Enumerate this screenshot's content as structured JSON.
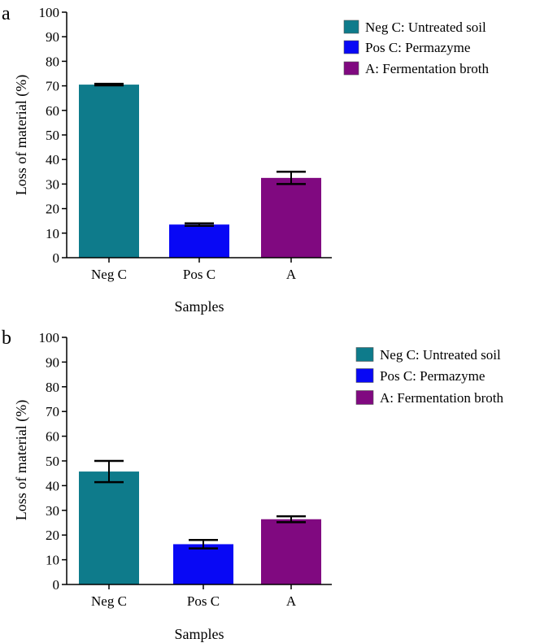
{
  "chart_data": [
    {
      "panel": "a",
      "type": "bar",
      "categories": [
        "Neg C",
        "Pos C",
        "A"
      ],
      "values": [
        70.5,
        13.5,
        32.5
      ],
      "errors": [
        0.3,
        0.5,
        2.5
      ],
      "colors": [
        "#0e7b8b",
        "#0808f5",
        "#800980"
      ],
      "xlabel": "Samples",
      "ylabel": "Loss of material (%)",
      "ylim": [
        0,
        100
      ],
      "yticks": [
        "0",
        "10",
        "20",
        "30",
        "40",
        "50",
        "60",
        "70",
        "80",
        "90",
        "100"
      ],
      "legend": [
        "Neg C: Untreated soil",
        "Pos C: Permazyme",
        "A: Fermentation broth"
      ],
      "legend_position": "top-right",
      "grid": false
    },
    {
      "panel": "b",
      "type": "bar",
      "categories": [
        "Neg C",
        "Pos C",
        "A"
      ],
      "values": [
        45.7,
        16.3,
        26.4
      ],
      "errors": [
        4.3,
        1.7,
        1.2
      ],
      "colors": [
        "#0e7b8b",
        "#0808f5",
        "#800980"
      ],
      "xlabel": "Samples",
      "ylabel": "Loss of material (%)",
      "ylim": [
        0,
        100
      ],
      "yticks": [
        "0",
        "10",
        "20",
        "30",
        "40",
        "50",
        "60",
        "70",
        "80",
        "90",
        "100"
      ],
      "legend": [
        "Neg C: Untreated soil",
        "Pos C: Permazyme",
        "A: Fermentation broth"
      ],
      "legend_position": "top-right",
      "grid": false
    }
  ]
}
